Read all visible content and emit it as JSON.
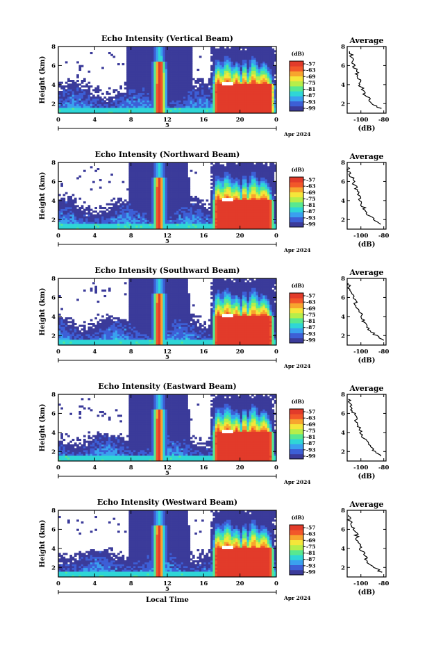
{
  "chart_data": [
    {
      "type": "heatmap",
      "title": "Echo Intensity (Vertical Beam)",
      "ylabel": "Height (km)",
      "x_ticks": [
        "0",
        "4",
        "8",
        "12",
        "16",
        "20",
        "0"
      ],
      "y_ticks": [
        "2",
        "4",
        "6",
        "8"
      ],
      "xlim": [
        0,
        24
      ],
      "ylim": [
        1,
        8
      ],
      "date_ticks": [
        "5"
      ],
      "date_label": "Apr 2024",
      "colorbar": {
        "label": "(dB)",
        "ticks": [
          "-57",
          "-63",
          "-69",
          "-75",
          "-81",
          "-87",
          "-93",
          "-99"
        ]
      },
      "rain_events": [
        {
          "start": 10.6,
          "end": 11.7,
          "peak_dB": -57
        },
        {
          "start": 17.1,
          "end": 23.7,
          "peak_dB": -57
        }
      ],
      "profile": {
        "title": "Average",
        "xlabel": "(dB)",
        "x_ticks": [
          "-100",
          "-80"
        ],
        "y_ticks": [
          "2",
          "4",
          "6",
          "8"
        ],
        "xlim": [
          -112,
          -78
        ],
        "ylim": [
          1,
          8
        ],
        "height": [
          1.5,
          2.0,
          2.5,
          3.0,
          3.5,
          4.0,
          4.5,
          5.0,
          5.5,
          6.0,
          6.5,
          7.0,
          7.5
        ],
        "value": [
          -83,
          -90,
          -93,
          -97,
          -98,
          -101,
          -101,
          -103,
          -104,
          -106,
          -107,
          -108,
          -110
        ]
      }
    },
    {
      "type": "heatmap",
      "title": "Echo Intensity (Northward Beam)",
      "ylabel": "Height (km)",
      "x_ticks": [
        "0",
        "4",
        "8",
        "12",
        "16",
        "20",
        "0"
      ],
      "y_ticks": [
        "2",
        "4",
        "6",
        "8"
      ],
      "xlim": [
        0,
        24
      ],
      "ylim": [
        1,
        8
      ],
      "date_ticks": [
        "5"
      ],
      "date_label": "Apr 2024",
      "colorbar": {
        "label": "(dB)",
        "ticks": [
          "-57",
          "-63",
          "-69",
          "-75",
          "-81",
          "-87",
          "-93",
          "-99"
        ]
      },
      "rain_events": [
        {
          "start": 10.6,
          "end": 11.6,
          "peak_dB": -57
        },
        {
          "start": 17.1,
          "end": 23.6,
          "peak_dB": -57
        }
      ],
      "profile": {
        "title": "Average",
        "xlabel": "(dB)",
        "x_ticks": [
          "-100",
          "-80"
        ],
        "y_ticks": [
          "2",
          "4",
          "6",
          "8"
        ],
        "xlim": [
          -112,
          -78
        ],
        "ylim": [
          1,
          8
        ],
        "height": [
          1.5,
          2.0,
          2.5,
          3.0,
          3.5,
          4.0,
          4.5,
          5.0,
          5.5,
          6.0,
          6.5,
          7.0,
          7.5
        ],
        "value": [
          -84,
          -89,
          -93,
          -96,
          -99,
          -100,
          -101,
          -103,
          -105,
          -107,
          -108,
          -110,
          -111
        ]
      }
    },
    {
      "type": "heatmap",
      "title": "Echo Intensity (Southward Beam)",
      "ylabel": "Height (km)",
      "x_ticks": [
        "0",
        "4",
        "8",
        "12",
        "16",
        "20",
        "0"
      ],
      "y_ticks": [
        "2",
        "4",
        "6",
        "8"
      ],
      "xlim": [
        0,
        24
      ],
      "ylim": [
        1,
        8
      ],
      "date_ticks": [
        "5"
      ],
      "date_label": "Apr 2024",
      "colorbar": {
        "label": "(dB)",
        "ticks": [
          "-57",
          "-63",
          "-69",
          "-75",
          "-81",
          "-87",
          "-93",
          "-99"
        ]
      },
      "rain_events": [
        {
          "start": 10.6,
          "end": 11.6,
          "peak_dB": -57
        },
        {
          "start": 17.1,
          "end": 23.6,
          "peak_dB": -57
        }
      ],
      "profile": {
        "title": "Average",
        "xlabel": "(dB)",
        "x_ticks": [
          "-100",
          "-80"
        ],
        "y_ticks": [
          "2",
          "4",
          "6",
          "8"
        ],
        "xlim": [
          -112,
          -78
        ],
        "ylim": [
          1,
          8
        ],
        "height": [
          1.5,
          2.0,
          2.5,
          3.0,
          3.5,
          4.0,
          4.5,
          5.0,
          5.5,
          6.0,
          6.5,
          7.0,
          7.5
        ],
        "value": [
          -81,
          -87,
          -92,
          -95,
          -98,
          -99,
          -101,
          -103,
          -105,
          -106,
          -108,
          -110,
          -111
        ]
      }
    },
    {
      "type": "heatmap",
      "title": "Echo Intensity (Eastward Beam)",
      "ylabel": "Height (km)",
      "x_ticks": [
        "0",
        "4",
        "8",
        "12",
        "16",
        "20",
        "0"
      ],
      "y_ticks": [
        "2",
        "4",
        "6",
        "8"
      ],
      "xlim": [
        0,
        24
      ],
      "ylim": [
        1,
        8
      ],
      "date_ticks": [
        "5"
      ],
      "date_label": "Apr 2024",
      "colorbar": {
        "label": "(dB)",
        "ticks": [
          "-57",
          "-63",
          "-69",
          "-75",
          "-81",
          "-87",
          "-93",
          "-99"
        ]
      },
      "rain_events": [
        {
          "start": 10.6,
          "end": 11.6,
          "peak_dB": -57
        },
        {
          "start": 17.1,
          "end": 23.6,
          "peak_dB": -57
        }
      ],
      "profile": {
        "title": "Average",
        "xlabel": "(dB)",
        "x_ticks": [
          "-100",
          "-80"
        ],
        "y_ticks": [
          "2",
          "4",
          "6",
          "8"
        ],
        "xlim": [
          -112,
          -78
        ],
        "ylim": [
          1,
          8
        ],
        "height": [
          1.5,
          2.0,
          2.5,
          3.0,
          3.5,
          4.0,
          4.5,
          5.0,
          5.5,
          6.0,
          6.5,
          7.0,
          7.5
        ],
        "value": [
          -82,
          -88,
          -92,
          -95,
          -98,
          -100,
          -101,
          -103,
          -105,
          -106,
          -108,
          -109,
          -111
        ]
      }
    },
    {
      "type": "heatmap",
      "title": "Echo Intensity (Westward Beam)",
      "ylabel": "Height (km)",
      "x_ticks": [
        "0",
        "4",
        "8",
        "12",
        "16",
        "20",
        "0"
      ],
      "y_ticks": [
        "2",
        "4",
        "6",
        "8"
      ],
      "xlim": [
        0,
        24
      ],
      "ylim": [
        1,
        8
      ],
      "date_ticks": [
        "5"
      ],
      "date_label": "Apr 2024",
      "xlabel": "Local Time",
      "colorbar": {
        "label": "(dB)",
        "ticks": [
          "-57",
          "-63",
          "-69",
          "-75",
          "-81",
          "-87",
          "-93",
          "-99"
        ]
      },
      "rain_events": [
        {
          "start": 10.6,
          "end": 11.6,
          "peak_dB": -57
        },
        {
          "start": 17.1,
          "end": 23.6,
          "peak_dB": -57
        }
      ],
      "profile": {
        "title": "Average",
        "xlabel": "(dB)",
        "x_ticks": [
          "-100",
          "-80"
        ],
        "y_ticks": [
          "2",
          "4",
          "6",
          "8"
        ],
        "xlim": [
          -112,
          -78
        ],
        "ylim": [
          1,
          8
        ],
        "height": [
          1.5,
          2.0,
          2.5,
          3.0,
          3.5,
          4.0,
          4.5,
          5.0,
          5.5,
          6.0,
          6.5,
          7.0,
          7.5
        ],
        "value": [
          -82,
          -88,
          -93,
          -96,
          -98,
          -100,
          -101,
          -103,
          -104,
          -106,
          -108,
          -110,
          -111
        ]
      }
    }
  ],
  "colormap": [
    "#3b3b9a",
    "#3d5fd6",
    "#3aa0ef",
    "#2fd6d6",
    "#58e890",
    "#b6ee4a",
    "#f5e63a",
    "#f7a52e",
    "#f2572a",
    "#e23b2a"
  ]
}
